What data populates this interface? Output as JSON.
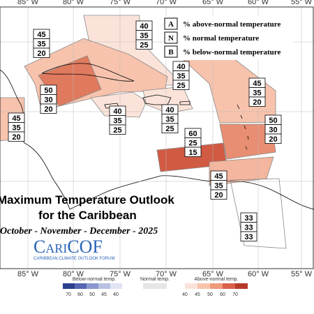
{
  "longitude_labels": [
    "85° W",
    "80° W",
    "75° W",
    "70° W",
    "65° W",
    "60° W",
    "55° W"
  ],
  "legend": {
    "rows": [
      {
        "letter": "A",
        "text": "% above-normal temperature"
      },
      {
        "letter": "N",
        "text": "% normal temperature"
      },
      {
        "letter": "B",
        "text": "% below-normal temperature"
      }
    ]
  },
  "title": {
    "line1": "Maximum Temperature Outlook",
    "line2": "for the Caribbean",
    "period": "October - November - December - 2025"
  },
  "logo": {
    "name": "CariCOF",
    "tagline": "CARIBBEAN CLIMATE OUTLOOK FORUM"
  },
  "regions": [
    {
      "above": 45,
      "normal": 35,
      "below": 20
    },
    {
      "above": 40,
      "normal": 35,
      "below": 25
    },
    {
      "above": 40,
      "normal": 35,
      "below": 25
    },
    {
      "above": 50,
      "normal": 30,
      "below": 20
    },
    {
      "above": 40,
      "normal": 35,
      "below": 25
    },
    {
      "above": 40,
      "normal": 35,
      "below": 25
    },
    {
      "above": 45,
      "normal": 35,
      "below": 20
    },
    {
      "above": 50,
      "normal": 30,
      "below": 20
    },
    {
      "above": 60,
      "normal": 25,
      "below": 15
    },
    {
      "above": 45,
      "normal": 35,
      "below": 20
    },
    {
      "above": 45,
      "normal": 35,
      "below": 20
    },
    {
      "above": 33,
      "normal": 33,
      "below": 33
    }
  ],
  "colorbar": {
    "below_label": "Below-normal temp.",
    "below_ticks": [
      70,
      60,
      50,
      45,
      40
    ],
    "normal_label": "Normal temp.",
    "above_label": "Above-normal temp.",
    "above_ticks": [
      40,
      45,
      50,
      60,
      70
    ]
  }
}
